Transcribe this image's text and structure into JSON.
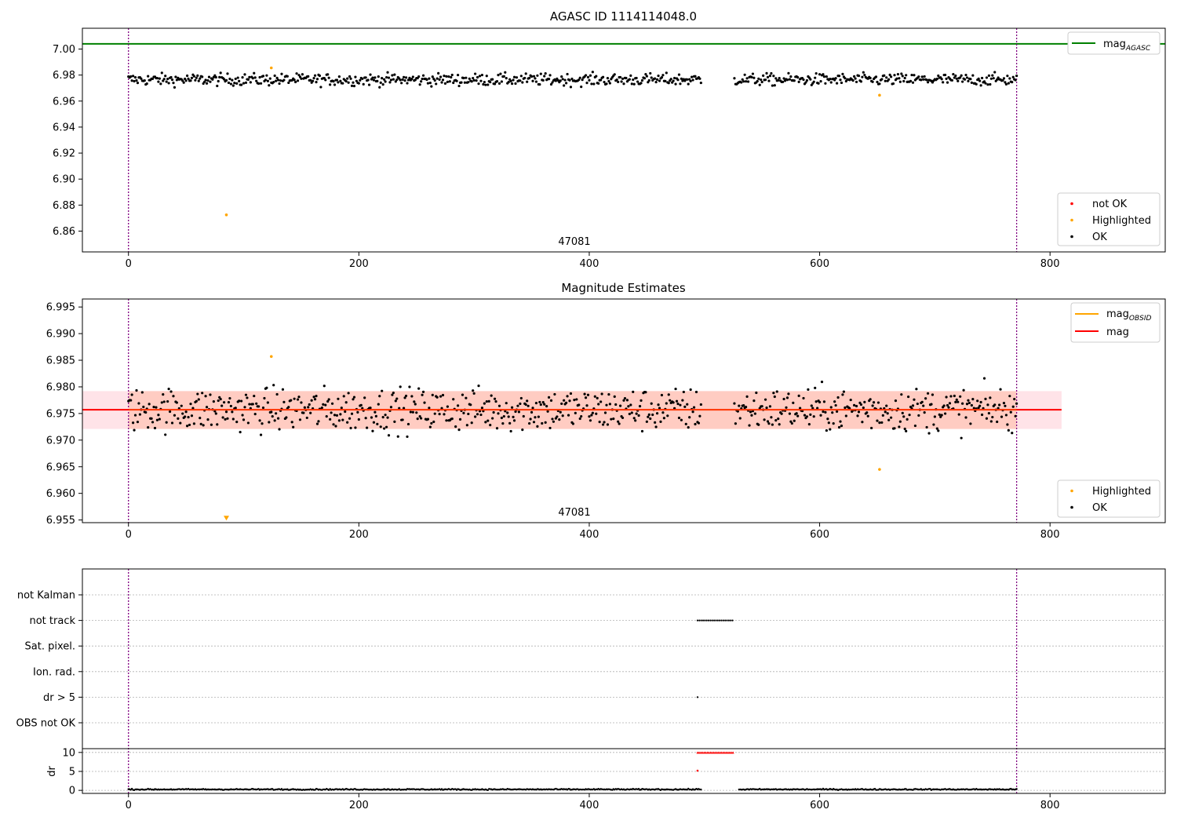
{
  "chart_data": [
    {
      "type": "scatter",
      "title": "AGASC ID 1114114048.0",
      "annotation": "47081",
      "xlim": [
        -40,
        900
      ],
      "ylim": [
        6.844,
        7.016
      ],
      "x_ticks": [
        0,
        200,
        400,
        600,
        800
      ],
      "y_ticks": [
        6.86,
        6.88,
        6.9,
        6.92,
        6.94,
        6.96,
        6.98,
        7.0
      ],
      "y_tick_labels": [
        "6.86",
        "6.88",
        "6.90",
        "6.92",
        "6.94",
        "6.96",
        "6.98",
        "7.00"
      ],
      "vlines": [
        0,
        771
      ],
      "colors": {
        "mag_agasc": "#008000",
        "not_ok": "#ff0000",
        "highlighted": "#ffa500",
        "ok": "#000000",
        "vline": "#800080"
      },
      "lines": [
        {
          "name": "mag_AGASC",
          "y": 7.004
        }
      ],
      "legend_lines": [
        {
          "label": "mag",
          "subscript": "AGASC"
        }
      ],
      "legend_markers": [
        "not OK",
        "Highlighted",
        "OK"
      ],
      "series": [
        {
          "name": "OK",
          "x_range": [
            0,
            771
          ],
          "gap": [
            497,
            526
          ],
          "center": 6.9765,
          "spread": 0.0045
        },
        {
          "name": "Highlighted",
          "points": [
            [
              85,
              6.8725
            ],
            [
              124,
              6.9855
            ],
            [
              652,
              6.9645
            ]
          ]
        }
      ]
    },
    {
      "type": "scatter",
      "title": "Magnitude Estimates",
      "annotation": "47081",
      "xlim": [
        -40,
        900
      ],
      "ylim": [
        6.9545,
        6.9965
      ],
      "x_ticks": [
        0,
        200,
        400,
        600,
        800
      ],
      "y_ticks": [
        6.955,
        6.96,
        6.965,
        6.97,
        6.975,
        6.98,
        6.985,
        6.99,
        6.995
      ],
      "y_tick_labels": [
        "6.955",
        "6.960",
        "6.965",
        "6.970",
        "6.975",
        "6.980",
        "6.985",
        "6.990",
        "6.995"
      ],
      "vlines": [
        0,
        771
      ],
      "colors": {
        "mag": "#ff0000",
        "mag_obsid": "#ffa500",
        "band_outer": "#ffc0cb",
        "band_inner": "#ffa07a",
        "highlighted": "#ffa500",
        "ok": "#000000"
      },
      "mag_line": 6.9757,
      "band": {
        "x_range": [
          -40,
          810
        ],
        "low": 6.9721,
        "high": 6.9792
      },
      "inner_band": {
        "x_range": [
          0,
          771
        ],
        "low": 6.9721,
        "high": 6.9792
      },
      "legend_lines": [
        {
          "label": "mag",
          "subscript": "OBSID"
        },
        {
          "label": "mag",
          "subscript": ""
        }
      ],
      "legend_markers": [
        "Highlighted",
        "OK"
      ],
      "series": [
        {
          "name": "OK",
          "x_range": [
            0,
            771
          ],
          "gap": [
            497,
            526
          ],
          "center": 6.9757,
          "spread": 0.004
        },
        {
          "name": "Highlighted",
          "points": [
            [
              124,
              6.9857
            ],
            [
              652,
              6.9645
            ],
            [
              85,
              6.9552
            ]
          ]
        }
      ]
    },
    {
      "type": "scatter",
      "title": "",
      "xlim": [
        -40,
        900
      ],
      "x_ticks": [
        0,
        200,
        400,
        600,
        800
      ],
      "vlines": [
        0,
        771
      ],
      "categories": [
        "not Kalman",
        "not track",
        "Sat. pixel.",
        "Ion. rad.",
        "dr > 5",
        "OBS not OK"
      ],
      "flag_points": {
        "not track": [
          494,
          526
        ],
        "dr > 5": [
          494
        ]
      },
      "dr_ylim": [
        -0.8,
        11
      ],
      "dr_ticks": [
        0,
        5,
        10
      ],
      "dr_tick_labels": [
        "0",
        "5",
        "10"
      ],
      "ylabel": "dr",
      "colors": {
        "red": "#ff0000",
        "black": "#000000",
        "vline": "#800080"
      },
      "dr_series": [
        {
          "name": "dr",
          "x_range": [
            0,
            771
          ],
          "gap": [
            497,
            530
          ],
          "center": 0.25,
          "spread": 0.15
        },
        {
          "name": "dr_capped",
          "x_range": [
            494,
            526
          ],
          "y": 10
        },
        {
          "name": "dr_point",
          "points": [
            [
              494,
              5.2
            ]
          ]
        }
      ]
    }
  ]
}
